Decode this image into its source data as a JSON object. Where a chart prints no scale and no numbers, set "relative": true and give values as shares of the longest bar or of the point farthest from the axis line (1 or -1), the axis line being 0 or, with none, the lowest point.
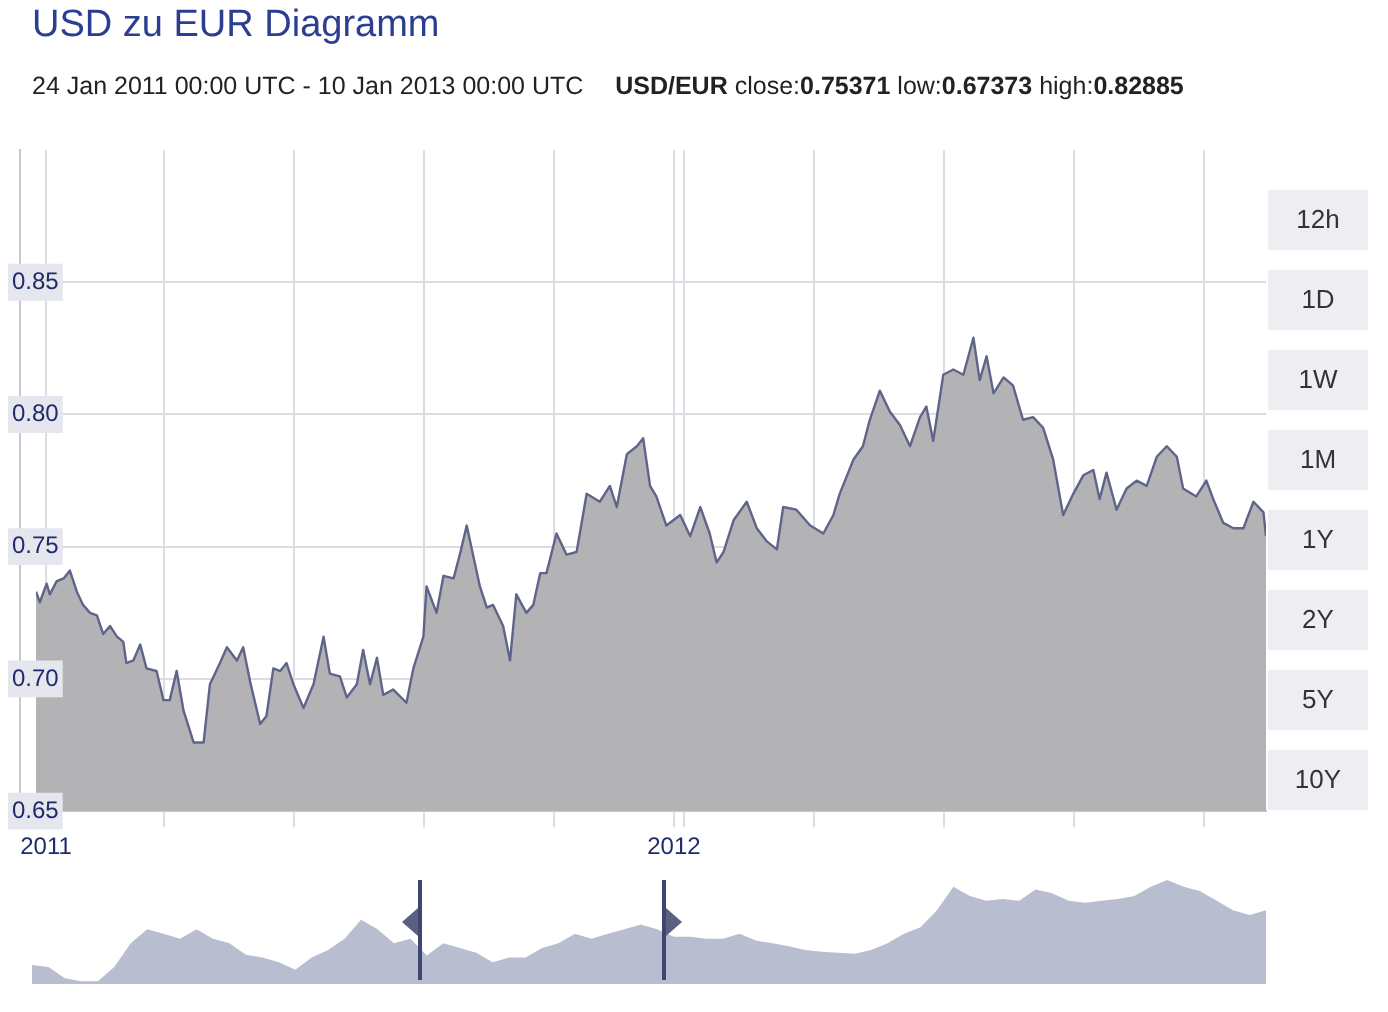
{
  "chart_data": [
    {
      "type": "area",
      "title": "USD zu EUR Diagramm",
      "subtitle": "24 Jan 2011 00:00 UTC - 10 Jan 2013 00:00 UTC",
      "annotations": [
        "USD/EUR close:0.75371 low:0.67373 high:0.82885",
        "12h",
        "1D",
        "1W",
        "1M",
        "1Y",
        "2Y",
        "5Y",
        "10Y"
      ],
      "xlim": [
        2010.984,
        2012.943
      ],
      "xticks": [
        2011,
        {
          "value": 2011.188,
          "label": null
        },
        {
          "value": 2011.395,
          "label": null
        },
        {
          "value": 2011.602,
          "label": null
        },
        {
          "value": 2011.809,
          "label": null
        },
        2012,
        {
          "value": 2012.016,
          "label": null
        },
        {
          "value": 2012.223,
          "label": null
        },
        {
          "value": 2012.43,
          "label": null
        },
        {
          "value": 2012.637,
          "label": null
        },
        {
          "value": 2012.844,
          "label": null
        }
      ],
      "ylim": [
        0.65,
        0.9
      ],
      "yticks": [
        0.65,
        {
          "value": 0.7,
          "label": "0.70"
        },
        0.75,
        {
          "value": 0.8,
          "label": "0.80"
        },
        0.85
      ],
      "grid": true,
      "marker": "none",
      "series": [
        {
          "color": "#5f6489",
          "x": [
            2010.984,
            2010.99,
            2011.001,
            2011.006,
            2011.017,
            2011.028,
            2011.038,
            2011.049,
            2011.059,
            2011.07,
            2011.081,
            2011.091,
            2011.102,
            2011.113,
            2011.123,
            2011.128,
            2011.139,
            2011.15,
            2011.16,
            2011.176,
            2011.187,
            2011.197,
            2011.208,
            2011.219,
            2011.235,
            2011.251,
            2011.261,
            2011.277,
            2011.288,
            2011.304,
            2011.314,
            2011.325,
            2011.341,
            2011.351,
            2011.362,
            2011.373,
            2011.383,
            2011.394,
            2011.41,
            2011.426,
            2011.442,
            2011.452,
            2011.468,
            2011.479,
            2011.495,
            2011.505,
            2011.516,
            2011.527,
            2011.537,
            2011.553,
            2011.574,
            2011.585,
            2011.601,
            2011.606,
            2011.622,
            2011.633,
            2011.649,
            2011.659,
            2011.67,
            2011.68,
            2011.691,
            2011.702,
            2011.712,
            2011.728,
            2011.739,
            2011.749,
            2011.765,
            2011.776,
            2011.787,
            2011.797,
            2011.813,
            2011.829,
            2011.845,
            2011.861,
            2011.882,
            2011.898,
            2011.909,
            2011.925,
            2011.941,
            2011.951,
            2011.962,
            2011.972,
            2011.988,
            2012.01,
            2012.026,
            2012.042,
            2012.057,
            2012.068,
            2012.079,
            2012.095,
            2012.116,
            2012.132,
            2012.148,
            2012.164,
            2012.174,
            2012.195,
            2012.217,
            2012.238,
            2012.254,
            2012.264,
            2012.286,
            2012.301,
            2012.312,
            2012.328,
            2012.344,
            2012.36,
            2012.376,
            2012.392,
            2012.402,
            2012.413,
            2012.429,
            2012.445,
            2012.461,
            2012.477,
            2012.487,
            2012.498,
            2012.509,
            2012.525,
            2012.54,
            2012.556,
            2012.572,
            2012.588,
            2012.604,
            2012.62,
            2012.636,
            2012.652,
            2012.668,
            2012.678,
            2012.689,
            2012.705,
            2012.721,
            2012.737,
            2012.753,
            2012.769,
            2012.785,
            2012.801,
            2012.811,
            2012.832,
            2012.848,
            2012.859,
            2012.875,
            2012.891,
            2012.907,
            2012.923,
            2012.939,
            2012.943
          ],
          "values": [
            0.733,
            0.729,
            0.736,
            0.732,
            0.737,
            0.738,
            0.741,
            0.733,
            0.728,
            0.725,
            0.724,
            0.717,
            0.72,
            0.716,
            0.714,
            0.706,
            0.707,
            0.713,
            0.704,
            0.703,
            0.692,
            0.692,
            0.703,
            0.688,
            0.676,
            0.676,
            0.698,
            0.706,
            0.712,
            0.707,
            0.712,
            0.699,
            0.683,
            0.686,
            0.704,
            0.703,
            0.706,
            0.698,
            0.689,
            0.698,
            0.716,
            0.702,
            0.701,
            0.693,
            0.698,
            0.711,
            0.698,
            0.708,
            0.694,
            0.696,
            0.691,
            0.704,
            0.716,
            0.735,
            0.725,
            0.739,
            0.738,
            0.747,
            0.758,
            0.747,
            0.735,
            0.727,
            0.728,
            0.72,
            0.707,
            0.732,
            0.725,
            0.728,
            0.74,
            0.74,
            0.755,
            0.747,
            0.748,
            0.77,
            0.767,
            0.773,
            0.765,
            0.785,
            0.788,
            0.791,
            0.773,
            0.769,
            0.758,
            0.762,
            0.754,
            0.765,
            0.755,
            0.744,
            0.748,
            0.76,
            0.767,
            0.757,
            0.752,
            0.749,
            0.765,
            0.764,
            0.758,
            0.755,
            0.762,
            0.77,
            0.783,
            0.788,
            0.798,
            0.809,
            0.801,
            0.796,
            0.788,
            0.799,
            0.803,
            0.79,
            0.815,
            0.817,
            0.815,
            0.829,
            0.813,
            0.822,
            0.808,
            0.814,
            0.811,
            0.798,
            0.799,
            0.795,
            0.783,
            0.762,
            0.77,
            0.777,
            0.779,
            0.768,
            0.778,
            0.764,
            0.772,
            0.775,
            0.773,
            0.784,
            0.788,
            0.784,
            0.772,
            0.769,
            0.775,
            0.768,
            0.759,
            0.757,
            0.757,
            0.767,
            0.763,
            0.754
          ]
        }
      ]
    },
    {
      "type": "area",
      "relative": true,
      "marker": "none",
      "categories": [
        null,
        null,
        null,
        null,
        null,
        null,
        null,
        null,
        null,
        null,
        null,
        null,
        null,
        null,
        null,
        null,
        null,
        null,
        null,
        null,
        null,
        null,
        null,
        null,
        null,
        null,
        null,
        null,
        null,
        null,
        null,
        null,
        null,
        null,
        null,
        null,
        null,
        null,
        null,
        null,
        null,
        null,
        null,
        null,
        null,
        null,
        null,
        null,
        null,
        null,
        null,
        null,
        null,
        null,
        null,
        null,
        null,
        null,
        null,
        null,
        null,
        null,
        null,
        null,
        null,
        null,
        null,
        null,
        null,
        null,
        null,
        null,
        null,
        null,
        null,
        null
      ],
      "series": [
        {
          "color": "#b8bdd0",
          "values": [
            0.182,
            0.164,
            0.055,
            0.027,
            0.027,
            0.164,
            0.391,
            0.527,
            0.482,
            0.436,
            0.527,
            0.436,
            0.391,
            0.282,
            0.255,
            0.209,
            0.136,
            0.255,
            0.327,
            0.436,
            0.618,
            0.527,
            0.391,
            0.436,
            0.273,
            0.391,
            0.345,
            0.3,
            0.209,
            0.255,
            0.255,
            0.345,
            0.391,
            0.482,
            0.436,
            0.482,
            0.527,
            0.573,
            0.527,
            0.455,
            0.455,
            0.436,
            0.436,
            0.482,
            0.418,
            0.391,
            0.364,
            0.327,
            0.309,
            0.3,
            0.291,
            0.327,
            0.391,
            0.482,
            0.545,
            0.709,
            0.936,
            0.845,
            0.8,
            0.818,
            0.8,
            0.909,
            0.873,
            0.8,
            0.782,
            0.8,
            0.818,
            0.845,
            0.936,
            1,
            0.936,
            0.891,
            0.8,
            0.709,
            0.664,
            0.709
          ]
        }
      ]
    }
  ]
}
